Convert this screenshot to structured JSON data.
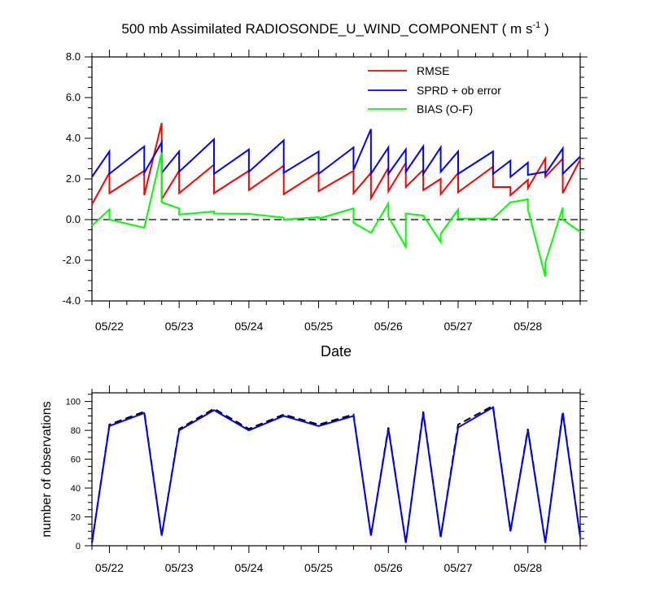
{
  "chart_data": [
    {
      "type": "line",
      "title": "500 mb Assimilated RADIOSONDE_U_WIND_COMPONENT ( m s",
      "title_unit_exponent": "-1",
      "title_close": " )",
      "xlabel": "Date",
      "ylabel": "",
      "xlim": [
        21.75,
        28.75
      ],
      "ylim": [
        -4.0,
        8.0
      ],
      "x_ticks": [
        22,
        23,
        24,
        25,
        26,
        27,
        28
      ],
      "x_tick_labels": [
        "05/22",
        "05/23",
        "05/24",
        "05/25",
        "05/26",
        "05/27",
        "05/28"
      ],
      "y_ticks": [
        -4.0,
        -2.0,
        0.0,
        2.0,
        4.0,
        6.0,
        8.0
      ],
      "y_tick_labels": [
        "-4.0",
        "-2.0",
        "0.0",
        "2.0",
        "4.0",
        "6.0",
        "8.0"
      ],
      "reference_line": {
        "y": 0,
        "style": "dashed"
      },
      "legend_position": "top-right",
      "series": [
        {
          "name": "RMSE",
          "color": "#ff0000",
          "points": [
            [
              21.75,
              0.75
            ],
            [
              22,
              2.3
            ],
            [
              22,
              1.3
            ],
            [
              22.5,
              2.4
            ],
            [
              22.5,
              1.2
            ],
            [
              22.75,
              4.75
            ],
            [
              22.75,
              1.0
            ],
            [
              23,
              2.4
            ],
            [
              23,
              1.3
            ],
            [
              23.5,
              2.7
            ],
            [
              23.5,
              1.3
            ],
            [
              24,
              2.4
            ],
            [
              24,
              1.45
            ],
            [
              24.5,
              2.65
            ],
            [
              24.5,
              1.25
            ],
            [
              25,
              2.35
            ],
            [
              25,
              1.4
            ],
            [
              25.5,
              2.4
            ],
            [
              25.5,
              1.3
            ],
            [
              25.75,
              2.3
            ],
            [
              25.75,
              1.05
            ],
            [
              26,
              2.55
            ],
            [
              26,
              1.4
            ],
            [
              26.25,
              2.8
            ],
            [
              26.25,
              1.6
            ],
            [
              26.5,
              2.45
            ],
            [
              26.5,
              1.45
            ],
            [
              26.75,
              2.0
            ],
            [
              26.75,
              1.25
            ],
            [
              27,
              2.3
            ],
            [
              27,
              1.35
            ],
            [
              27.5,
              2.6
            ],
            [
              27.5,
              1.6
            ],
            [
              27.75,
              1.6
            ],
            [
              27.75,
              1.2
            ],
            [
              28,
              1.95
            ],
            [
              28,
              1.55
            ],
            [
              28.25,
              3.0
            ],
            [
              28.25,
              2.1
            ],
            [
              28.5,
              3.0
            ],
            [
              28.5,
              1.3
            ],
            [
              28.75,
              2.95
            ]
          ]
        },
        {
          "name": "SPRD + ob error",
          "color": "#0000ff",
          "points": [
            [
              21.75,
              2.1
            ],
            [
              22,
              3.35
            ],
            [
              22,
              2.25
            ],
            [
              22.5,
              3.6
            ],
            [
              22.5,
              2.3
            ],
            [
              22.75,
              3.8
            ],
            [
              22.75,
              2.3
            ],
            [
              23,
              3.35
            ],
            [
              23,
              2.35
            ],
            [
              23.5,
              3.95
            ],
            [
              23.5,
              2.25
            ],
            [
              24,
              3.45
            ],
            [
              24,
              2.35
            ],
            [
              24.5,
              3.9
            ],
            [
              24.5,
              2.3
            ],
            [
              25,
              3.35
            ],
            [
              25,
              2.25
            ],
            [
              25.5,
              3.55
            ],
            [
              25.5,
              2.45
            ],
            [
              25.75,
              4.45
            ],
            [
              25.75,
              2.25
            ],
            [
              26,
              3.55
            ],
            [
              26,
              2.25
            ],
            [
              26.25,
              3.45
            ],
            [
              26.25,
              2.35
            ],
            [
              26.5,
              3.6
            ],
            [
              26.5,
              2.25
            ],
            [
              26.75,
              3.55
            ],
            [
              26.75,
              2.35
            ],
            [
              27,
              3.35
            ],
            [
              27,
              2.25
            ],
            [
              27.5,
              3.35
            ],
            [
              27.5,
              2.25
            ],
            [
              27.75,
              2.9
            ],
            [
              27.75,
              2.1
            ],
            [
              28,
              2.8
            ],
            [
              28,
              2.2
            ],
            [
              28.25,
              2.35
            ],
            [
              28.25,
              2.25
            ],
            [
              28.5,
              3.5
            ],
            [
              28.5,
              2.25
            ],
            [
              28.75,
              3.1
            ]
          ]
        },
        {
          "name": "BIAS (O-F)",
          "color": "#00ff00",
          "points": [
            [
              21.75,
              -0.3
            ],
            [
              22,
              0.5
            ],
            [
              22,
              0.0
            ],
            [
              22.5,
              -0.4
            ],
            [
              22.75,
              3.3
            ],
            [
              22.75,
              0.85
            ],
            [
              23,
              0.55
            ],
            [
              23,
              0.25
            ],
            [
              23.5,
              0.4
            ],
            [
              23.5,
              0.3
            ],
            [
              24,
              0.28
            ],
            [
              24.5,
              0.1
            ],
            [
              24.5,
              0.0
            ],
            [
              25,
              0.12
            ],
            [
              25,
              0.05
            ],
            [
              25.5,
              0.55
            ],
            [
              25.5,
              -0.15
            ],
            [
              25.75,
              -0.65
            ],
            [
              26,
              0.8
            ],
            [
              26,
              0.15
            ],
            [
              26.25,
              -1.35
            ],
            [
              26.25,
              0.3
            ],
            [
              26.5,
              0.2
            ],
            [
              26.75,
              -1.1
            ],
            [
              26.75,
              -0.7
            ],
            [
              27,
              0.5
            ],
            [
              27,
              0.05
            ],
            [
              27.5,
              0.05
            ],
            [
              27.75,
              0.85
            ],
            [
              28,
              1.0
            ],
            [
              28,
              0.5
            ],
            [
              28.25,
              -2.8
            ],
            [
              28.25,
              -2.1
            ],
            [
              28.5,
              0.6
            ],
            [
              28.5,
              0.0
            ],
            [
              28.75,
              -0.6
            ]
          ]
        }
      ]
    },
    {
      "type": "line",
      "title": "",
      "xlabel": "",
      "ylabel": "number of observations",
      "xlim": [
        21.75,
        28.75
      ],
      "ylim": [
        0,
        106
      ],
      "x_ticks": [
        22,
        23,
        24,
        25,
        26,
        27,
        28
      ],
      "x_tick_labels": [
        "05/22",
        "05/23",
        "05/24",
        "05/25",
        "05/26",
        "05/27",
        "05/28"
      ],
      "y_ticks": [
        0,
        20,
        40,
        60,
        80,
        100
      ],
      "y_tick_labels": [
        "0",
        "20",
        "40",
        "60",
        "80",
        "100"
      ],
      "series": [
        {
          "color": "#000000",
          "style": "dashed",
          "points": [
            [
              21.75,
              2
            ],
            [
              22,
              84
            ],
            [
              22.5,
              93
            ],
            [
              22.75,
              7
            ],
            [
              23,
              81
            ],
            [
              23.5,
              95
            ],
            [
              24,
              81
            ],
            [
              24.5,
              91
            ],
            [
              25,
              84
            ],
            [
              25.5,
              91
            ],
            [
              25.75,
              7
            ],
            [
              26,
              82
            ],
            [
              26.25,
              2
            ],
            [
              26.5,
              93
            ],
            [
              26.75,
              6
            ],
            [
              27,
              84
            ],
            [
              27.5,
              97
            ],
            [
              27.75,
              10
            ],
            [
              28,
              81
            ],
            [
              28.25,
              2
            ],
            [
              28.5,
              93
            ],
            [
              28.75,
              6
            ]
          ]
        },
        {
          "color": "#0000ff",
          "style": "solid",
          "points": [
            [
              21.75,
              2
            ],
            [
              22,
              83
            ],
            [
              22.5,
              92
            ],
            [
              22.75,
              7
            ],
            [
              23,
              80
            ],
            [
              23.5,
              94
            ],
            [
              24,
              80
            ],
            [
              24.5,
              90
            ],
            [
              25,
              83
            ],
            [
              25.5,
              90
            ],
            [
              25.75,
              7
            ],
            [
              26,
              81
            ],
            [
              26.25,
              2
            ],
            [
              26.5,
              92
            ],
            [
              26.75,
              6
            ],
            [
              27,
              82
            ],
            [
              27.5,
              96
            ],
            [
              27.75,
              10
            ],
            [
              28,
              80
            ],
            [
              28.25,
              2
            ],
            [
              28.5,
              92
            ],
            [
              28.75,
              6
            ]
          ]
        }
      ]
    }
  ]
}
